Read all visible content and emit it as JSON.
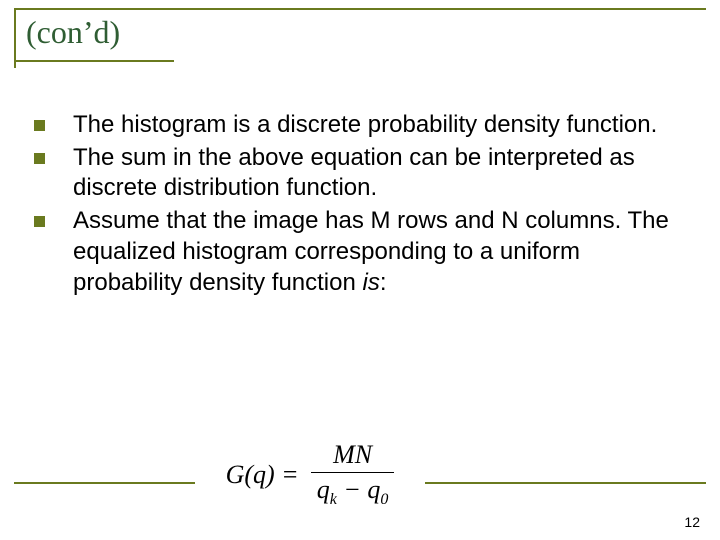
{
  "title": "(con’d)",
  "bullets": [
    "The histogram is a discrete probability density function.",
    "The sum in the above equation can be interpreted as discrete distribution function.",
    "Assume that the image has M rows and N columns. The equalized histogram corresponding to a uniform probability density function "
  ],
  "bullet3_trailer_italic": "is",
  "bullet3_trailer_after": ":",
  "equation": {
    "lhs": "G(q) =",
    "numerator": "MN",
    "den_left": "q",
    "den_left_sub": "k",
    "den_op": " − ",
    "den_right": "q",
    "den_right_sub": "0"
  },
  "page_number": "12",
  "colors": {
    "accent": "#6a7a1f",
    "title_color": "#2f5d33",
    "text": "#000000",
    "background": "#ffffff"
  }
}
